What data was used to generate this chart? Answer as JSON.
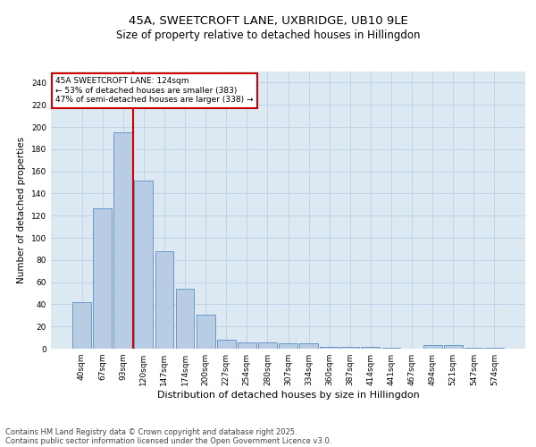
{
  "title_line1": "45A, SWEETCROFT LANE, UXBRIDGE, UB10 9LE",
  "title_line2": "Size of property relative to detached houses in Hillingdon",
  "xlabel": "Distribution of detached houses by size in Hillingdon",
  "ylabel": "Number of detached properties",
  "categories": [
    "40sqm",
    "67sqm",
    "93sqm",
    "120sqm",
    "147sqm",
    "174sqm",
    "200sqm",
    "227sqm",
    "254sqm",
    "280sqm",
    "307sqm",
    "334sqm",
    "360sqm",
    "387sqm",
    "414sqm",
    "441sqm",
    "467sqm",
    "494sqm",
    "521sqm",
    "547sqm",
    "574sqm"
  ],
  "values": [
    42,
    127,
    195,
    152,
    88,
    54,
    31,
    8,
    6,
    6,
    5,
    5,
    2,
    2,
    2,
    1,
    0,
    3,
    3,
    1,
    1
  ],
  "bar_color": "#b8cce4",
  "bar_edge_color": "#5b8ec4",
  "vline_index": 3,
  "vline_color": "#cc0000",
  "annotation_text": "45A SWEETCROFT LANE: 124sqm\n← 53% of detached houses are smaller (383)\n47% of semi-detached houses are larger (338) →",
  "annotation_box_color": "#ffffff",
  "annotation_box_edge": "#cc0000",
  "ylim": [
    0,
    250
  ],
  "yticks": [
    0,
    20,
    40,
    60,
    80,
    100,
    120,
    140,
    160,
    180,
    200,
    220,
    240
  ],
  "grid_color": "#c0d4e8",
  "bg_color": "#dce8f2",
  "footer_line1": "Contains HM Land Registry data © Crown copyright and database right 2025.",
  "footer_line2": "Contains public sector information licensed under the Open Government Licence v3.0.",
  "title_fontsize": 9.5,
  "subtitle_fontsize": 8.5,
  "ylabel_fontsize": 7.5,
  "xlabel_fontsize": 8,
  "tick_fontsize": 6.5,
  "annotation_fontsize": 6.5,
  "footer_fontsize": 6
}
